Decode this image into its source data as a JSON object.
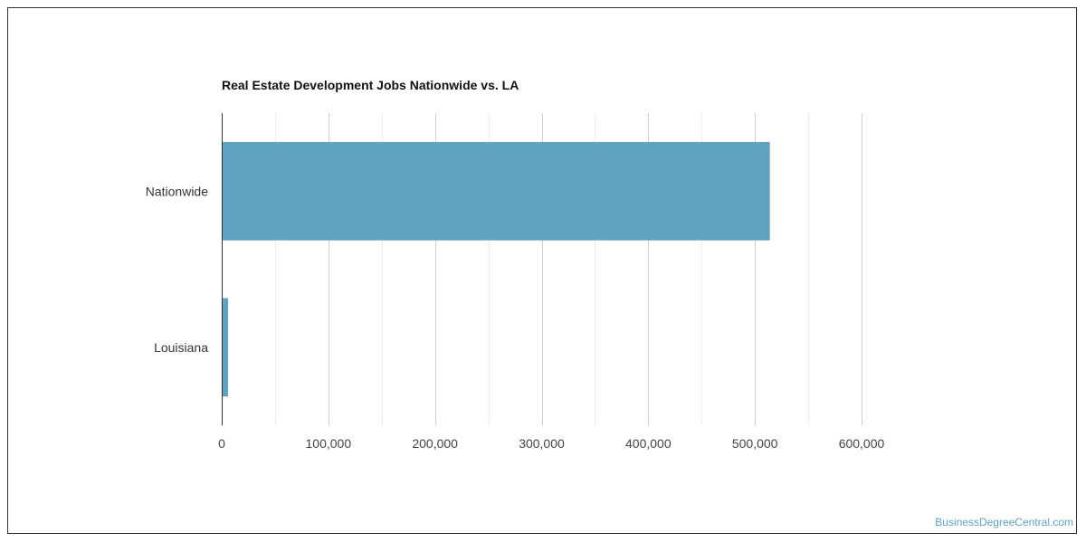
{
  "chart_data": {
    "type": "bar",
    "orientation": "horizontal",
    "title": "Real Estate Development Jobs Nationwide vs. LA",
    "categories": [
      "Nationwide",
      "Louisiana"
    ],
    "values": [
      514000,
      6000
    ],
    "xlim": [
      0,
      600000
    ],
    "x_ticks": [
      0,
      100000,
      200000,
      300000,
      400000,
      500000,
      600000
    ],
    "x_tick_labels": [
      "0",
      "100,000",
      "200,000",
      "300,000",
      "400,000",
      "500,000",
      "600,000"
    ],
    "grid": true,
    "bar_color": "#5ea3c0"
  },
  "watermark": "BusinessDegreeCentral.com"
}
